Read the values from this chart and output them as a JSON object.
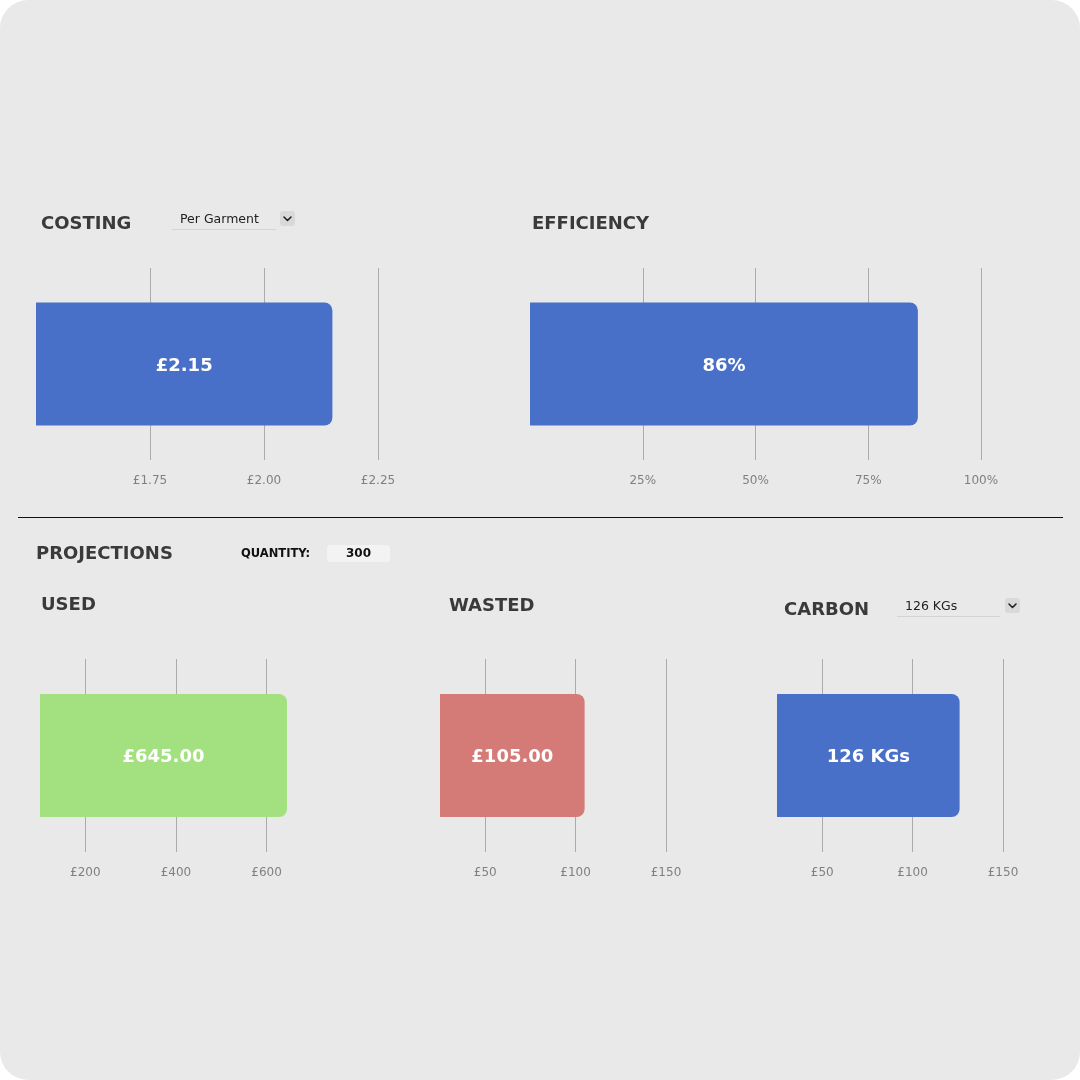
{
  "chart_data": [
    {
      "type": "bar",
      "orientation": "horizontal",
      "title": "COSTING",
      "annotations": [
        "Per Garment"
      ],
      "categories": [
        null
      ],
      "values": [
        2.15
      ],
      "value_labels": [
        "£2.15"
      ],
      "color": "#4870c8",
      "xlim": [
        1.5,
        2.25
      ],
      "xticks": [
        {
          "value": 1.75,
          "label": "£1.75"
        },
        {
          "value": 2,
          "label": "£2.00"
        },
        {
          "value": 2.25,
          "label": "£2.25"
        }
      ],
      "grid": "x",
      "tick_labels": "x"
    },
    {
      "type": "bar",
      "orientation": "horizontal",
      "title": "EFFICIENCY",
      "categories": [
        null
      ],
      "values": [
        86
      ],
      "value_labels": [
        "86%"
      ],
      "color": "#4870c8",
      "xlim": [
        0,
        100
      ],
      "xticks": [
        {
          "value": 25,
          "label": "25%"
        },
        {
          "value": 50,
          "label": "50%"
        },
        {
          "value": 75,
          "label": "75%"
        },
        {
          "value": 100,
          "label": "100%"
        }
      ],
      "grid": "x",
      "tick_labels": "x"
    },
    {
      "type": "other",
      "title": "PROJECTIONS",
      "annotations": [
        "QUANTITY:",
        "300"
      ]
    },
    {
      "type": "bar",
      "orientation": "horizontal",
      "title": "USED",
      "categories": [
        null
      ],
      "values": [
        645
      ],
      "value_labels": [
        "£645.00"
      ],
      "color": "#a3e080",
      "xlim": [
        100,
        645
      ],
      "xticks": [
        {
          "value": 200,
          "label": "£200"
        },
        {
          "value": 400,
          "label": "£400"
        },
        {
          "value": 600,
          "label": "£600"
        }
      ],
      "grid": "x",
      "tick_labels": "x"
    },
    {
      "type": "bar",
      "orientation": "horizontal",
      "title": "WASTED",
      "categories": [
        null
      ],
      "values": [
        105
      ],
      "value_labels": [
        "£105.00"
      ],
      "color": "#d47b78",
      "xlim": [
        25,
        150
      ],
      "xticks": [
        {
          "value": 50,
          "label": "£50"
        },
        {
          "value": 100,
          "label": "£100"
        },
        {
          "value": 150,
          "label": "£150"
        }
      ],
      "grid": "x",
      "tick_labels": "x"
    },
    {
      "type": "bar",
      "orientation": "horizontal",
      "title": "CARBON",
      "annotations": [
        "126 KGs"
      ],
      "categories": [
        null
      ],
      "values": [
        126
      ],
      "value_labels": [
        "126 KGs"
      ],
      "color": "#4870c8",
      "xlim": [
        25,
        150
      ],
      "xticks": [
        {
          "value": 50,
          "label": "£50"
        },
        {
          "value": 100,
          "label": "£100"
        },
        {
          "value": 150,
          "label": "£150"
        }
      ],
      "grid": "x",
      "tick_labels": "x"
    }
  ]
}
